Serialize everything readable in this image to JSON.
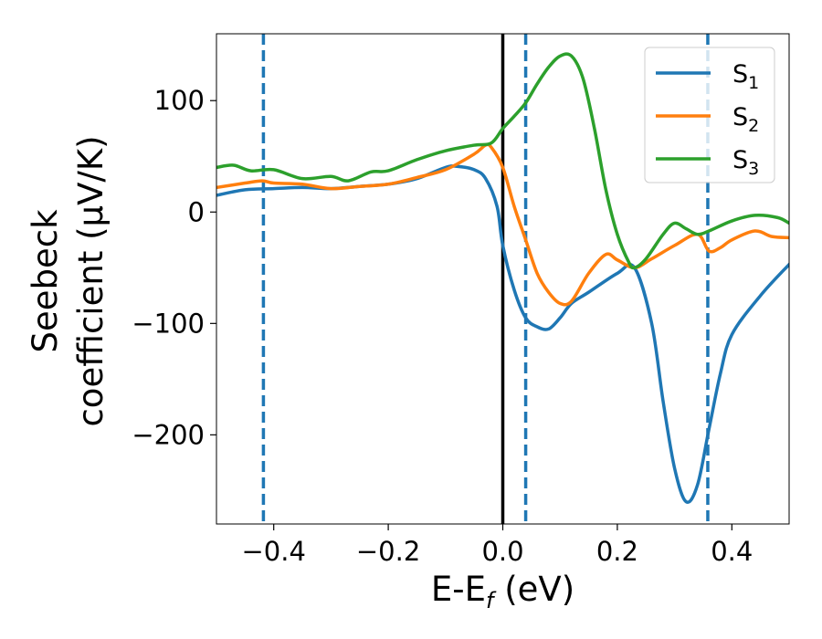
{
  "chart_data": {
    "type": "line",
    "xlabel": "E-E",
    "xlabel_sub": "f",
    "xlabel_unit": "(eV)",
    "ylabel_line1": "Seebeck",
    "ylabel_line2": "coefficient  (μV/K)",
    "xlim": [
      -0.5,
      0.5
    ],
    "ylim": [
      -280,
      160
    ],
    "x_ticks": [
      -0.4,
      -0.2,
      0.0,
      0.2,
      0.4
    ],
    "x_tick_labels": [
      "−0.4",
      "−0.2",
      "0.0",
      "0.2",
      "0.4"
    ],
    "y_ticks": [
      -200,
      -100,
      0,
      100
    ],
    "y_tick_labels": [
      "−200",
      "−100",
      "0",
      "100"
    ],
    "grid": false,
    "legend_position": "top-right",
    "vertical_lines": [
      {
        "x": 0.0,
        "style": "solid",
        "color": "#000000"
      },
      {
        "x": -0.418,
        "style": "dashed",
        "color": "#1f77b4"
      },
      {
        "x": 0.04,
        "style": "dashed",
        "color": "#1f77b4"
      },
      {
        "x": 0.358,
        "style": "dashed",
        "color": "#1f77b4"
      }
    ],
    "series": [
      {
        "name": "S",
        "sub": "1",
        "color": "#1f77b4",
        "points": [
          [
            -0.5,
            15
          ],
          [
            -0.45,
            20
          ],
          [
            -0.4,
            21
          ],
          [
            -0.35,
            22
          ],
          [
            -0.3,
            21
          ],
          [
            -0.25,
            23
          ],
          [
            -0.2,
            25
          ],
          [
            -0.15,
            30
          ],
          [
            -0.1,
            40
          ],
          [
            -0.08,
            41
          ],
          [
            -0.05,
            38
          ],
          [
            -0.03,
            30
          ],
          [
            -0.01,
            5
          ],
          [
            0.0,
            -30
          ],
          [
            0.02,
            -70
          ],
          [
            0.04,
            -95
          ],
          [
            0.06,
            -103
          ],
          [
            0.08,
            -105
          ],
          [
            0.1,
            -95
          ],
          [
            0.12,
            -82
          ],
          [
            0.15,
            -72
          ],
          [
            0.2,
            -55
          ],
          [
            0.23,
            -50
          ],
          [
            0.26,
            -100
          ],
          [
            0.28,
            -170
          ],
          [
            0.3,
            -230
          ],
          [
            0.32,
            -260
          ],
          [
            0.34,
            -245
          ],
          [
            0.36,
            -195
          ],
          [
            0.38,
            -145
          ],
          [
            0.4,
            -110
          ],
          [
            0.45,
            -75
          ],
          [
            0.5,
            -47
          ]
        ]
      },
      {
        "name": "S",
        "sub": "2",
        "color": "#ff7f0e",
        "points": [
          [
            -0.5,
            22
          ],
          [
            -0.45,
            26
          ],
          [
            -0.42,
            28
          ],
          [
            -0.4,
            26
          ],
          [
            -0.35,
            25
          ],
          [
            -0.3,
            21
          ],
          [
            -0.25,
            23
          ],
          [
            -0.2,
            25
          ],
          [
            -0.15,
            31
          ],
          [
            -0.1,
            38
          ],
          [
            -0.05,
            52
          ],
          [
            -0.03,
            60
          ],
          [
            -0.02,
            58
          ],
          [
            0.0,
            40
          ],
          [
            0.02,
            5
          ],
          [
            0.04,
            -25
          ],
          [
            0.06,
            -55
          ],
          [
            0.08,
            -72
          ],
          [
            0.1,
            -82
          ],
          [
            0.12,
            -80
          ],
          [
            0.15,
            -55
          ],
          [
            0.18,
            -38
          ],
          [
            0.2,
            -43
          ],
          [
            0.23,
            -50
          ],
          [
            0.26,
            -42
          ],
          [
            0.3,
            -30
          ],
          [
            0.34,
            -20
          ],
          [
            0.36,
            -35
          ],
          [
            0.38,
            -32
          ],
          [
            0.4,
            -25
          ],
          [
            0.44,
            -17
          ],
          [
            0.47,
            -22
          ],
          [
            0.5,
            -23
          ]
        ]
      },
      {
        "name": "S",
        "sub": "3",
        "color": "#2ca02c",
        "points": [
          [
            -0.5,
            40
          ],
          [
            -0.47,
            42
          ],
          [
            -0.44,
            37
          ],
          [
            -0.4,
            38
          ],
          [
            -0.35,
            30
          ],
          [
            -0.3,
            32
          ],
          [
            -0.27,
            28
          ],
          [
            -0.23,
            36
          ],
          [
            -0.2,
            37
          ],
          [
            -0.15,
            47
          ],
          [
            -0.1,
            55
          ],
          [
            -0.05,
            60
          ],
          [
            -0.02,
            62
          ],
          [
            0.0,
            75
          ],
          [
            0.02,
            86
          ],
          [
            0.04,
            98
          ],
          [
            0.06,
            115
          ],
          [
            0.08,
            130
          ],
          [
            0.1,
            140
          ],
          [
            0.12,
            140
          ],
          [
            0.14,
            120
          ],
          [
            0.16,
            75
          ],
          [
            0.18,
            20
          ],
          [
            0.2,
            -20
          ],
          [
            0.22,
            -45
          ],
          [
            0.23,
            -50
          ],
          [
            0.25,
            -42
          ],
          [
            0.28,
            -20
          ],
          [
            0.3,
            -10
          ],
          [
            0.32,
            -15
          ],
          [
            0.34,
            -20
          ],
          [
            0.36,
            -17
          ],
          [
            0.4,
            -8
          ],
          [
            0.44,
            -3
          ],
          [
            0.48,
            -5
          ],
          [
            0.5,
            -10
          ]
        ]
      }
    ]
  }
}
